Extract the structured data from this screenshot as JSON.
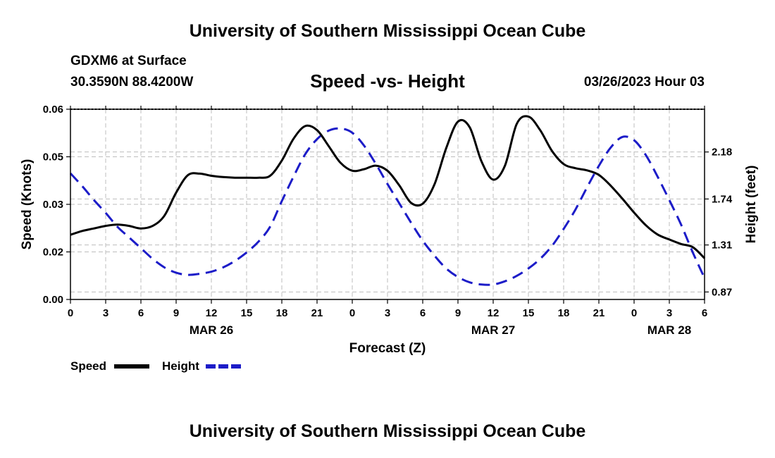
{
  "header": {
    "top_title": "University of Southern Mississippi Ocean Cube",
    "bottom_title": "University of Southern Mississippi Ocean Cube",
    "station": "GDXM6 at Surface",
    "coords": "30.3590N  88.4200W",
    "datetime": "03/26/2023 Hour 03"
  },
  "chart_data": {
    "type": "line",
    "title": "Speed -vs- Height",
    "xlabel": "Forecast (Z)",
    "ylabel_left": "Speed (Knots)",
    "ylabel_right": "Height (feet)",
    "x_hours": [
      0,
      1,
      2,
      3,
      4,
      5,
      6,
      7,
      8,
      9,
      10,
      11,
      12,
      13,
      14,
      15,
      16,
      17,
      18,
      19,
      20,
      21,
      22,
      23,
      24,
      25,
      26,
      27,
      28,
      29,
      30,
      31,
      32,
      33,
      34,
      35,
      36,
      37,
      38,
      39,
      40,
      41,
      42,
      43,
      44,
      45,
      46,
      47,
      48,
      49,
      50,
      51,
      52,
      53,
      54
    ],
    "x_tick_labels": [
      "0",
      "3",
      "6",
      "9",
      "12",
      "15",
      "18",
      "21",
      "0",
      "3",
      "6",
      "9",
      "12",
      "15",
      "18",
      "21",
      "0",
      "3",
      "6"
    ],
    "date_labels": [
      {
        "label": "MAR 26",
        "hour": 12
      },
      {
        "label": "MAR 27",
        "hour": 36
      },
      {
        "label": "MAR 28",
        "hour": 51
      }
    ],
    "yleft_lim": [
      0,
      0.06
    ],
    "yleft_ticks": [
      "0.00",
      "0.02",
      "0.03",
      "0.05",
      "0.06"
    ],
    "yleft_tick_values": [
      0,
      0.015,
      0.03,
      0.045,
      0.06
    ],
    "yright_lim": [
      0.8,
      2.58
    ],
    "yright_ticks": [
      "0.87",
      "1.31",
      "1.74",
      "2.18"
    ],
    "yright_tick_values": [
      0.87,
      1.31,
      1.74,
      2.18
    ],
    "grid": true,
    "series": [
      {
        "name": "Speed",
        "axis": "left",
        "color": "#000000",
        "style": "solid",
        "values": [
          0.0204,
          0.0216,
          0.0224,
          0.0232,
          0.0236,
          0.0232,
          0.0224,
          0.0232,
          0.0264,
          0.0337,
          0.0392,
          0.0397,
          0.039,
          0.0386,
          0.0384,
          0.0384,
          0.0384,
          0.039,
          0.0438,
          0.0507,
          0.0547,
          0.0534,
          0.0483,
          0.0431,
          0.0406,
          0.0411,
          0.0422,
          0.0406,
          0.036,
          0.0305,
          0.0302,
          0.0363,
          0.0477,
          0.0561,
          0.0543,
          0.0436,
          0.0378,
          0.0422,
          0.0553,
          0.0577,
          0.0534,
          0.0469,
          0.0427,
          0.0414,
          0.0407,
          0.0393,
          0.0359,
          0.0318,
          0.0274,
          0.0234,
          0.0205,
          0.0189,
          0.0175,
          0.0165,
          0.013
        ]
      },
      {
        "name": "Height",
        "axis": "right",
        "color": "#1c1cc8",
        "style": "dashed",
        "values": [
          1.98,
          1.86,
          1.73,
          1.61,
          1.48,
          1.38,
          1.28,
          1.18,
          1.1,
          1.05,
          1.03,
          1.04,
          1.06,
          1.1,
          1.16,
          1.24,
          1.34,
          1.48,
          1.72,
          1.95,
          2.16,
          2.3,
          2.38,
          2.4,
          2.36,
          2.24,
          2.07,
          1.88,
          1.7,
          1.52,
          1.35,
          1.21,
          1.09,
          1.01,
          0.96,
          0.94,
          0.94,
          0.97,
          1.02,
          1.09,
          1.18,
          1.3,
          1.46,
          1.64,
          1.85,
          2.05,
          2.22,
          2.32,
          2.29,
          2.15,
          1.95,
          1.73,
          1.5,
          1.24,
          1.0
        ]
      }
    ]
  },
  "legend": {
    "items": [
      {
        "label": "Speed",
        "color": "#000000",
        "style": "solid"
      },
      {
        "label": "Height",
        "color": "#1c1cc8",
        "style": "dashed"
      }
    ]
  }
}
